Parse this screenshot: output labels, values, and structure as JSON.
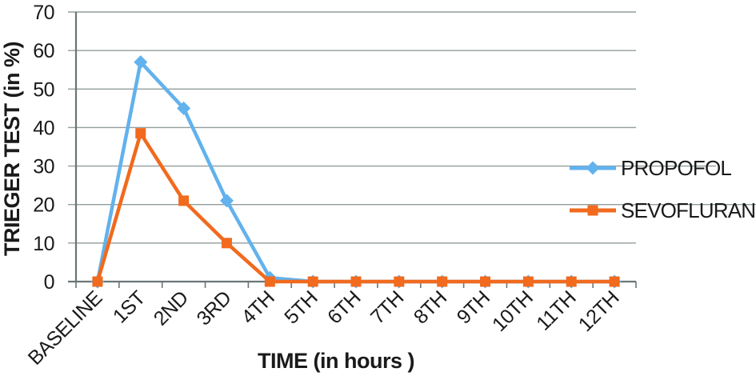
{
  "chart_data": {
    "type": "line",
    "categories": [
      "BASELINE",
      "1ST",
      "2ND",
      "3RD",
      "4TH",
      "5TH",
      "6TH",
      "7TH",
      "8TH",
      "9TH",
      "10TH",
      "11TH",
      "12TH"
    ],
    "series": [
      {
        "name": "PROPOFOL",
        "color": "#62B2ED",
        "marker": "diamond",
        "values": [
          0,
          57,
          45,
          21,
          1,
          0,
          0,
          0,
          0,
          0,
          0,
          0,
          0
        ]
      },
      {
        "name": "SEVOFLURANE",
        "color": "#F16A1E",
        "marker": "square",
        "values": [
          0,
          38.5,
          21,
          10,
          0,
          0,
          0,
          0,
          0,
          0,
          0,
          0,
          0
        ]
      }
    ],
    "xlabel": "TIME (in hours )",
    "ylabel": "TRIEGER TEST (in %)",
    "ylim": [
      0,
      70
    ],
    "yticks": [
      0,
      10,
      20,
      30,
      40,
      50,
      60,
      70
    ],
    "grid": true,
    "legend_position": "center-right",
    "grid_color": "#939D9D",
    "axis_color": "#6B7575"
  }
}
